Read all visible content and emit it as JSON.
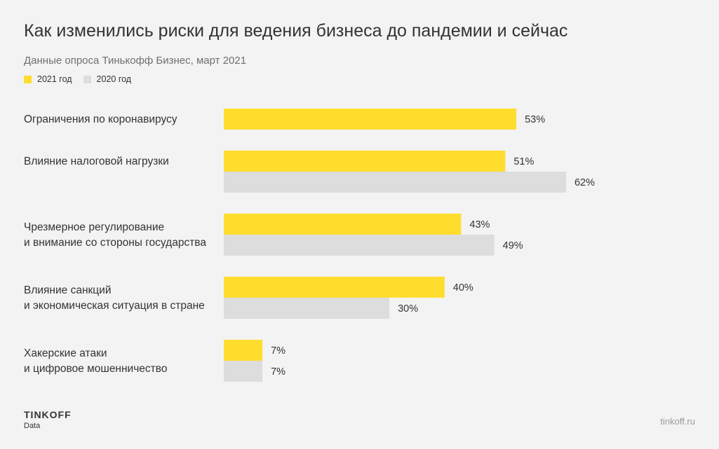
{
  "header": {
    "title": "Как изменились риски для ведения бизнеса до пандемии и сейчас",
    "subtitle": "Данные опроса Тинькофф Бизнес, март 2021"
  },
  "colors": {
    "series_2021": "#ffdd2d",
    "series_2020": "#dddddd",
    "background": "#f3f3f3",
    "text": "#333333"
  },
  "chart_data": {
    "type": "bar",
    "orientation": "horizontal",
    "categories": [
      [
        "Ограничения по коронавирусу"
      ],
      [
        "Влияние налоговой нагрузки"
      ],
      [
        "Чрезмерное регулирование",
        "и внимание со стороны государства"
      ],
      [
        "Влияние санкций",
        "и экономическая ситуация в стране"
      ],
      [
        "Хакерские атаки",
        "и цифровое мошенничество"
      ]
    ],
    "series": [
      {
        "name": "2021 год",
        "values": [
          53,
          51,
          43,
          40,
          7
        ],
        "labels": [
          "53%",
          "51%",
          "43%",
          "40%",
          "7%"
        ]
      },
      {
        "name": "2020 год",
        "values": [
          null,
          62,
          49,
          30,
          7
        ],
        "labels": [
          null,
          "62%",
          "49%",
          "30%",
          "7%"
        ]
      }
    ],
    "unit": "%",
    "grid": false,
    "legend_position": "top-left"
  },
  "footer": {
    "brand": "TINKOFF",
    "brand_sub": "Data",
    "site": "tinkoff.ru"
  }
}
